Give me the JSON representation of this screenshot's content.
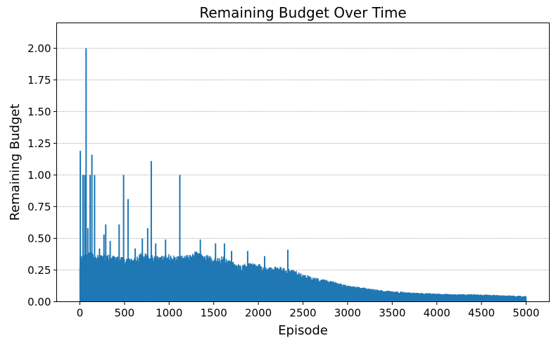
{
  "chart_data": {
    "type": "line",
    "title": "Remaining Budget Over Time",
    "xlabel": "Episode",
    "ylabel": "Remaining Budget",
    "xlim": [
      -260,
      5260
    ],
    "ylim": [
      0,
      2.2
    ],
    "x_ticks": [
      0,
      500,
      1000,
      1500,
      2000,
      2500,
      3000,
      3500,
      4000,
      4500,
      5000
    ],
    "x_tick_labels": [
      "0",
      "500",
      "1000",
      "1500",
      "2000",
      "2500",
      "3000",
      "3500",
      "4000",
      "4500",
      "5000"
    ],
    "y_ticks": [
      0,
      0.25,
      0.5,
      0.75,
      1.0,
      1.25,
      1.5,
      1.75,
      2.0
    ],
    "y_tick_labels": [
      "0.00",
      "0.25",
      "0.50",
      "0.75",
      "1.00",
      "1.25",
      "1.50",
      "1.75",
      "2.00"
    ],
    "grid": "horizontal dashed",
    "legend": "none",
    "line_color": "#1f77b4",
    "episode_count": 5000,
    "envelope": [
      [
        0,
        0.35
      ],
      [
        100,
        0.4
      ],
      [
        200,
        0.37
      ],
      [
        300,
        0.38
      ],
      [
        400,
        0.36
      ],
      [
        500,
        0.35
      ],
      [
        600,
        0.34
      ],
      [
        700,
        0.4
      ],
      [
        800,
        0.37
      ],
      [
        900,
        0.36
      ],
      [
        1000,
        0.38
      ],
      [
        1100,
        0.36
      ],
      [
        1200,
        0.37
      ],
      [
        1300,
        0.4
      ],
      [
        1400,
        0.38
      ],
      [
        1500,
        0.35
      ],
      [
        1600,
        0.36
      ],
      [
        1700,
        0.32
      ],
      [
        1800,
        0.3
      ],
      [
        1900,
        0.31
      ],
      [
        2000,
        0.3
      ],
      [
        2100,
        0.27
      ],
      [
        2200,
        0.28
      ],
      [
        2300,
        0.27
      ],
      [
        2400,
        0.25
      ],
      [
        2500,
        0.22
      ],
      [
        2600,
        0.2
      ],
      [
        2700,
        0.18
      ],
      [
        2800,
        0.17
      ],
      [
        2900,
        0.15
      ],
      [
        3000,
        0.13
      ],
      [
        3200,
        0.11
      ],
      [
        3400,
        0.09
      ],
      [
        3600,
        0.08
      ],
      [
        3800,
        0.07
      ],
      [
        4000,
        0.065
      ],
      [
        4200,
        0.06
      ],
      [
        4400,
        0.06
      ],
      [
        4600,
        0.055
      ],
      [
        4800,
        0.05
      ],
      [
        5000,
        0.045
      ]
    ],
    "spikes": [
      {
        "x": 5,
        "y": 1.19
      },
      {
        "x": 35,
        "y": 1.0
      },
      {
        "x": 55,
        "y": 1.0
      },
      {
        "x": 70,
        "y": 2.0
      },
      {
        "x": 90,
        "y": 0.58
      },
      {
        "x": 115,
        "y": 1.0
      },
      {
        "x": 135,
        "y": 1.16
      },
      {
        "x": 165,
        "y": 1.0
      },
      {
        "x": 220,
        "y": 0.42
      },
      {
        "x": 270,
        "y": 0.53
      },
      {
        "x": 290,
        "y": 0.61
      },
      {
        "x": 340,
        "y": 0.48
      },
      {
        "x": 440,
        "y": 0.61
      },
      {
        "x": 490,
        "y": 1.0
      },
      {
        "x": 540,
        "y": 0.81
      },
      {
        "x": 620,
        "y": 0.42
      },
      {
        "x": 700,
        "y": 0.5
      },
      {
        "x": 760,
        "y": 0.58
      },
      {
        "x": 800,
        "y": 1.11
      },
      {
        "x": 850,
        "y": 0.46
      },
      {
        "x": 960,
        "y": 0.49
      },
      {
        "x": 1120,
        "y": 1.0
      },
      {
        "x": 1350,
        "y": 0.49
      },
      {
        "x": 1520,
        "y": 0.46
      },
      {
        "x": 1620,
        "y": 0.46
      },
      {
        "x": 1700,
        "y": 0.4
      },
      {
        "x": 1880,
        "y": 0.4
      },
      {
        "x": 2070,
        "y": 0.36
      },
      {
        "x": 2330,
        "y": 0.41
      }
    ]
  }
}
